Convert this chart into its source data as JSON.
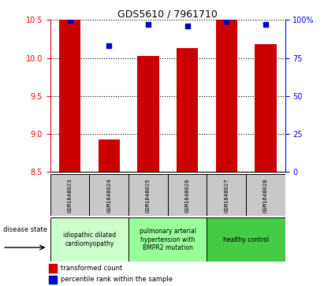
{
  "title": "GDS5610 / 7961710",
  "samples": [
    "GSM1648023",
    "GSM1648024",
    "GSM1648025",
    "GSM1648026",
    "GSM1648027",
    "GSM1648028"
  ],
  "transformed_count": [
    10.5,
    8.92,
    10.03,
    10.13,
    10.5,
    10.18
  ],
  "percentile_rank": [
    99.5,
    83,
    97,
    96,
    99,
    97
  ],
  "ylim_left": [
    8.5,
    10.5
  ],
  "ylim_right": [
    0,
    100
  ],
  "yticks_left": [
    8.5,
    9.0,
    9.5,
    10.0,
    10.5
  ],
  "yticks_right": [
    0,
    25,
    50,
    75,
    100
  ],
  "bar_bottom": 8.5,
  "bar_color": "#cc0000",
  "dot_color": "#0000cc",
  "disease_groups": [
    {
      "label": "idiopathic dilated\ncardiomyopathy",
      "indices": [
        0,
        1
      ],
      "color": "#ccffcc"
    },
    {
      "label": "pulmonary arterial\nhypertension with\nBMPR2 mutation",
      "indices": [
        2,
        3
      ],
      "color": "#99ff99"
    },
    {
      "label": "healthy control",
      "indices": [
        4,
        5
      ],
      "color": "#44cc44"
    }
  ],
  "legend_bar_label": "transformed count",
  "legend_dot_label": "percentile rank within the sample",
  "disease_state_label": "disease state",
  "bar_width": 0.55,
  "dot_size": 18,
  "bg_color": "#ffffff"
}
